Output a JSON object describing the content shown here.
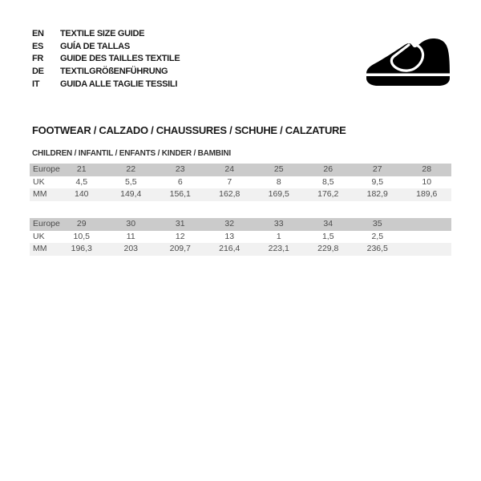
{
  "header": {
    "languages": [
      {
        "code": "EN",
        "label": "TEXTILE SIZE GUIDE"
      },
      {
        "code": "ES",
        "label": "GUÍA DE TALLAS"
      },
      {
        "code": "FR",
        "label": "GUIDE DES TAILLES TEXTILE"
      },
      {
        "code": "DE",
        "label": "TEXTILGRÖßENFÜHRUNG"
      },
      {
        "code": "IT",
        "label": "GUIDA ALLE TAGLIE TESSILI"
      }
    ],
    "logo_icon": "children-shoe-icon"
  },
  "section": {
    "title": "FOOTWEAR / CALZADO / CHAUSSURES / SCHUHE / CALZATURE",
    "subtitle": "CHILDREN / INFANTIL / ENFANTS / KINDER / BAMBINI"
  },
  "colors": {
    "header_row_bg": "#cbcbcb",
    "mm_row_bg": "#f1f1f1",
    "table_text": "#4d4d4d",
    "heading_text": "#1b1b1b",
    "logo": "#000000"
  },
  "tables": [
    {
      "rows": [
        {
          "label": "Europe",
          "values": [
            "21",
            "22",
            "23",
            "24",
            "25",
            "26",
            "27",
            "28"
          ]
        },
        {
          "label": "UK",
          "values": [
            "4,5",
            "5,5",
            "6",
            "7",
            "8",
            "8,5",
            "9,5",
            "10"
          ]
        },
        {
          "label": "MM",
          "values": [
            "140",
            "149,4",
            "156,1",
            "162,8",
            "169,5",
            "176,2",
            "182,9",
            "189,6"
          ]
        }
      ]
    },
    {
      "rows": [
        {
          "label": "Europe",
          "values": [
            "29",
            "30",
            "31",
            "32",
            "33",
            "34",
            "35",
            ""
          ]
        },
        {
          "label": "UK",
          "values": [
            "10,5",
            "11",
            "12",
            "13",
            "1",
            "1,5",
            "2,5",
            ""
          ]
        },
        {
          "label": "MM",
          "values": [
            "196,3",
            "203",
            "209,7",
            "216,4",
            "223,1",
            "229,8",
            "236,5",
            ""
          ]
        }
      ]
    }
  ]
}
